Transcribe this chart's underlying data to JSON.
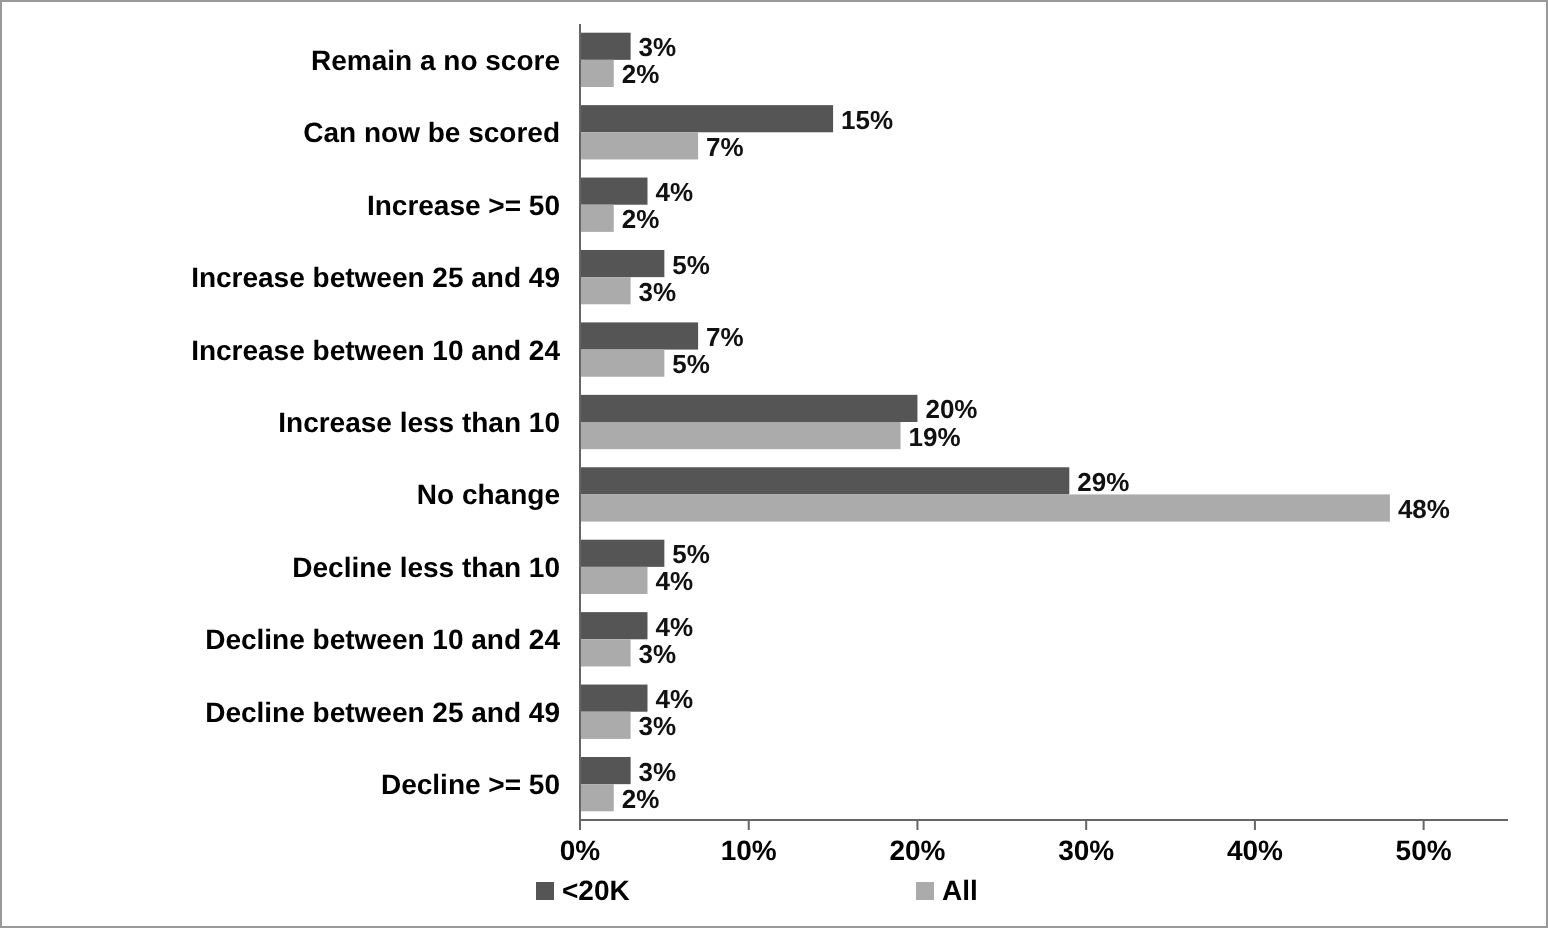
{
  "chart_data": {
    "type": "bar",
    "orientation": "horizontal",
    "categories": [
      "Remain a no score",
      "Can now be scored",
      "Increase >= 50",
      "Increase between 25 and 49",
      "Increase between 10 and 24",
      "Increase less than 10",
      "No change",
      "Decline less than 10",
      "Decline between 10 and 24",
      "Decline between 25 and 49",
      "Decline >= 50"
    ],
    "series": [
      {
        "name": "<20K",
        "color": "#555555",
        "values": [
          3,
          15,
          4,
          5,
          7,
          20,
          29,
          5,
          4,
          4,
          3
        ],
        "value_labels": [
          "3%",
          "15%",
          "4%",
          "5%",
          "7%",
          "20%",
          "29%",
          "5%",
          "4%",
          "4%",
          "3%"
        ]
      },
      {
        "name": "All",
        "color": "#ababab",
        "values": [
          2,
          7,
          2,
          3,
          5,
          19,
          48,
          4,
          3,
          3,
          2
        ],
        "value_labels": [
          "2%",
          "7%",
          "2%",
          "3%",
          "5%",
          "19%",
          "48%",
          "4%",
          "3%",
          "3%",
          "2%"
        ]
      }
    ],
    "xlim": [
      0,
      55
    ],
    "xticks": [
      {
        "value": 0,
        "label": "0%"
      },
      {
        "value": 10,
        "label": "10%"
      },
      {
        "value": 20,
        "label": "20%"
      },
      {
        "value": 30,
        "label": "30%"
      },
      {
        "value": 40,
        "label": "40%"
      },
      {
        "value": 50,
        "label": "50%"
      }
    ],
    "grid": false,
    "legend": "bottom left"
  }
}
